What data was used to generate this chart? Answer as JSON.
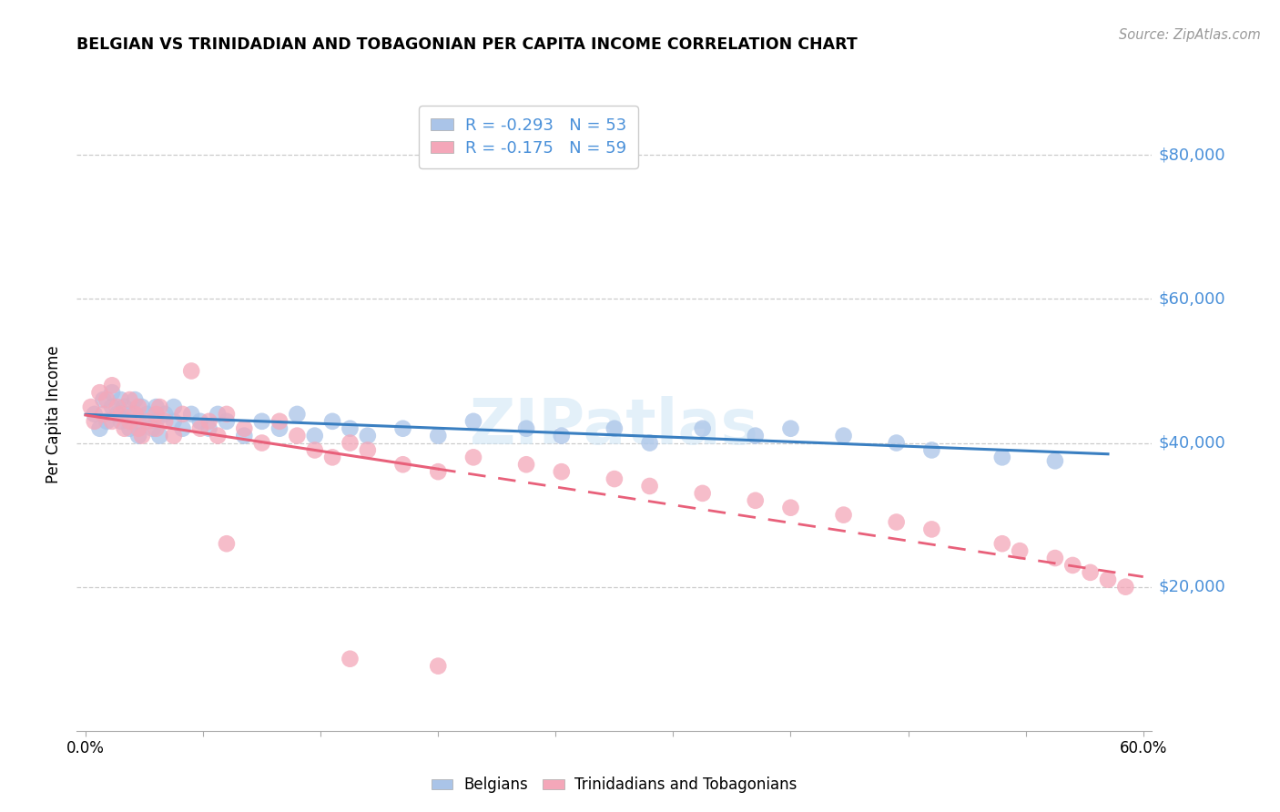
{
  "title": "BELGIAN VS TRINIDADIAN AND TOBAGONIAN PER CAPITA INCOME CORRELATION CHART",
  "source_text": "Source: ZipAtlas.com",
  "ylabel": "Per Capita Income",
  "xlabel": "",
  "xlim": [
    -0.005,
    0.605
  ],
  "ylim": [
    0,
    88000
  ],
  "yticks": [
    20000,
    40000,
    60000,
    80000
  ],
  "ytick_labels": [
    "$20,000",
    "$40,000",
    "$60,000",
    "$80,000"
  ],
  "background_color": "#ffffff",
  "grid_color": "#cccccc",
  "belgian_color": "#aac4e8",
  "trinidadian_color": "#f4a7b9",
  "belgian_line_color": "#3a7fc1",
  "trinidadian_line_color": "#e8607a",
  "legend_label1": "R = -0.293   N = 53",
  "legend_label2": "R = -0.175   N = 59",
  "watermark": "ZIPatlas",
  "belgians_label": "Belgians",
  "trinidadians_label": "Trinidadians and Tobagonians",
  "belgian_scatter_x": [
    0.005,
    0.008,
    0.01,
    0.012,
    0.015,
    0.015,
    0.018,
    0.02,
    0.02,
    0.022,
    0.025,
    0.025,
    0.028,
    0.03,
    0.03,
    0.032,
    0.035,
    0.038,
    0.04,
    0.04,
    0.042,
    0.045,
    0.05,
    0.05,
    0.055,
    0.06,
    0.065,
    0.07,
    0.075,
    0.08,
    0.09,
    0.1,
    0.11,
    0.12,
    0.13,
    0.14,
    0.15,
    0.16,
    0.18,
    0.2,
    0.22,
    0.25,
    0.27,
    0.3,
    0.32,
    0.35,
    0.38,
    0.4,
    0.43,
    0.46,
    0.48,
    0.52,
    0.55
  ],
  "belgian_scatter_y": [
    44000,
    42000,
    46000,
    43000,
    45000,
    47000,
    44000,
    46000,
    43000,
    45000,
    42000,
    44000,
    46000,
    43000,
    41000,
    45000,
    44000,
    42000,
    43000,
    45000,
    41000,
    44000,
    43000,
    45000,
    42000,
    44000,
    43000,
    42000,
    44000,
    43000,
    41000,
    43000,
    42000,
    44000,
    41000,
    43000,
    42000,
    41000,
    42000,
    41000,
    43000,
    42000,
    41000,
    42000,
    40000,
    42000,
    41000,
    42000,
    41000,
    40000,
    39000,
    38000,
    37500
  ],
  "trinidadian_scatter_x": [
    0.003,
    0.005,
    0.008,
    0.01,
    0.012,
    0.015,
    0.015,
    0.018,
    0.02,
    0.022,
    0.025,
    0.025,
    0.028,
    0.03,
    0.03,
    0.032,
    0.035,
    0.04,
    0.04,
    0.042,
    0.045,
    0.05,
    0.055,
    0.06,
    0.065,
    0.07,
    0.075,
    0.08,
    0.09,
    0.1,
    0.11,
    0.12,
    0.13,
    0.14,
    0.15,
    0.16,
    0.18,
    0.2,
    0.22,
    0.25,
    0.27,
    0.3,
    0.32,
    0.35,
    0.38,
    0.4,
    0.43,
    0.46,
    0.48,
    0.52,
    0.53,
    0.55,
    0.56,
    0.57,
    0.58,
    0.59,
    0.2,
    0.08,
    0.15
  ],
  "trinidadian_scatter_y": [
    45000,
    43000,
    47000,
    44000,
    46000,
    48000,
    43000,
    45000,
    44000,
    42000,
    46000,
    43000,
    44000,
    45000,
    42000,
    41000,
    43000,
    44000,
    42000,
    45000,
    43000,
    41000,
    44000,
    50000,
    42000,
    43000,
    41000,
    44000,
    42000,
    40000,
    43000,
    41000,
    39000,
    38000,
    40000,
    39000,
    37000,
    36000,
    38000,
    37000,
    36000,
    35000,
    34000,
    33000,
    32000,
    31000,
    30000,
    29000,
    28000,
    26000,
    25000,
    24000,
    23000,
    22000,
    21000,
    20000,
    9000,
    26000,
    10000
  ]
}
